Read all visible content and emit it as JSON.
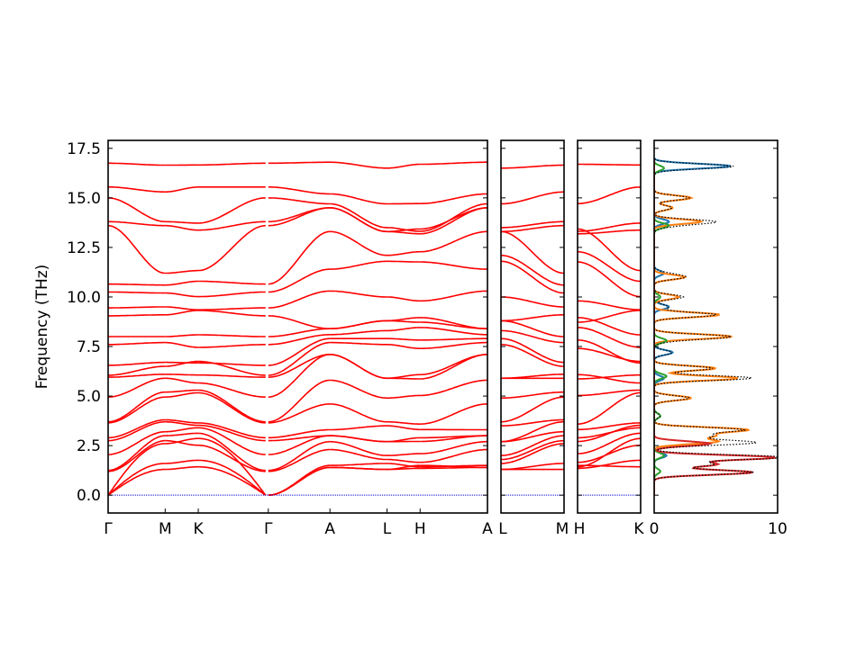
{
  "chart_data": {
    "type": "line",
    "title": "",
    "ylabel": "Frequency (THz)",
    "ylim": [
      -0.9,
      17.9
    ],
    "yticks": [
      0.0,
      2.5,
      5.0,
      7.5,
      10.0,
      12.5,
      15.0,
      17.5
    ],
    "ytick_labels": [
      "0.0",
      "2.5",
      "5.0",
      "7.5",
      "10.0",
      "12.5",
      "15.0",
      "17.5"
    ],
    "band_color": "#ff0000",
    "zero_line_color": "#0000cc",
    "band_panels": [
      {
        "segments": [
          {
            "from": "Γ",
            "to": "M",
            "length": 1.0
          },
          {
            "from": "M",
            "to": "K",
            "length": 0.58
          },
          {
            "from": "K",
            "to": "Γ",
            "length": 1.18
          },
          {
            "from": "Γ",
            "to": "A",
            "length": 1.08
          },
          {
            "from": "A",
            "to": "L",
            "length": 1.0
          },
          {
            "from": "L",
            "to": "H",
            "length": 0.58
          },
          {
            "from": "H",
            "to": "A",
            "length": 1.18
          }
        ],
        "tick_labels": [
          "Γ",
          "M",
          "K",
          "Γ",
          "A",
          "L",
          "H",
          "A"
        ],
        "break_after_segment": 2
      },
      {
        "segments": [
          {
            "from": "L",
            "to": "M",
            "length": 1.0
          }
        ],
        "tick_labels": [
          "L",
          "M"
        ]
      },
      {
        "segments": [
          {
            "from": "H",
            "to": "K",
            "length": 1.0
          }
        ],
        "tick_labels": [
          "H",
          "K"
        ]
      }
    ],
    "gamma_mode_frequencies": [
      0.0,
      0.0,
      0.0,
      1.2,
      1.25,
      2.05,
      2.75,
      2.9,
      3.65,
      3.7,
      4.95,
      5.95,
      6.05,
      6.55,
      7.6,
      8.0,
      9.05,
      9.45,
      10.25,
      10.65,
      13.6,
      13.8,
      15.0,
      15.55,
      16.75
    ],
    "zone_edge_frequencies": {
      "M": [
        1.3,
        1.6,
        2.6,
        2.75,
        3.0,
        3.2,
        3.7,
        3.8,
        4.95,
        5.2,
        5.9,
        6.1,
        6.5,
        6.7,
        7.7,
        8.0,
        9.1,
        9.5,
        10.2,
        10.6,
        11.2,
        13.6,
        13.8,
        15.3,
        16.65
      ],
      "A": [
        1.4,
        1.5,
        2.3,
        2.7,
        3.0,
        3.3,
        4.6,
        5.8,
        7.1,
        7.7,
        7.9,
        8.1,
        8.4,
        10.3,
        11.4,
        13.3,
        14.5,
        14.7,
        15.2,
        16.8
      ],
      "L": [
        1.3,
        1.6,
        1.8,
        2.0,
        2.7,
        3.5,
        3.7,
        4.9,
        5.9,
        7.6,
        7.9,
        8.3,
        8.8,
        10.0,
        11.8,
        12.1,
        13.3,
        13.5,
        14.7,
        16.5
      ]
    },
    "dos_panel": {
      "xlim": [
        0,
        10
      ],
      "xtick_labels": [
        "0",
        "10"
      ],
      "total_color": "#000000",
      "series": [
        {
          "color": "#1f77b4",
          "peaks": [
            [
              16.6,
              6.2
            ],
            [
              13.8,
              1.2
            ],
            [
              11.2,
              0.8
            ],
            [
              9.5,
              1.2
            ],
            [
              7.2,
              1.5
            ],
            [
              5.9,
              0.8
            ],
            [
              2.0,
              1.0
            ]
          ]
        },
        {
          "color": "#ff7f0e",
          "peaks": [
            [
              15.0,
              3.0
            ],
            [
              14.5,
              1.5
            ],
            [
              13.8,
              3.8
            ],
            [
              11.0,
              2.5
            ],
            [
              10.0,
              2.0
            ],
            [
              9.1,
              5.3
            ],
            [
              8.0,
              6.3
            ],
            [
              6.4,
              5.0
            ],
            [
              5.9,
              6.8
            ],
            [
              4.9,
              3.0
            ],
            [
              3.3,
              7.5
            ],
            [
              3.0,
              4.5
            ],
            [
              2.7,
              5.0
            ]
          ]
        },
        {
          "color": "#2ca02c",
          "peaks": [
            [
              16.5,
              0.8
            ],
            [
              13.6,
              1.2
            ],
            [
              10.0,
              0.5
            ],
            [
              7.8,
              1.0
            ],
            [
              6.0,
              1.0
            ],
            [
              4.0,
              0.5
            ],
            [
              2.0,
              0.8
            ],
            [
              1.2,
              0.5
            ]
          ]
        },
        {
          "color": "#d62728",
          "peaks": [
            [
              2.6,
              4.5
            ],
            [
              1.9,
              9.8
            ],
            [
              1.55,
              5.0
            ],
            [
              1.15,
              8.0
            ]
          ]
        }
      ]
    }
  }
}
